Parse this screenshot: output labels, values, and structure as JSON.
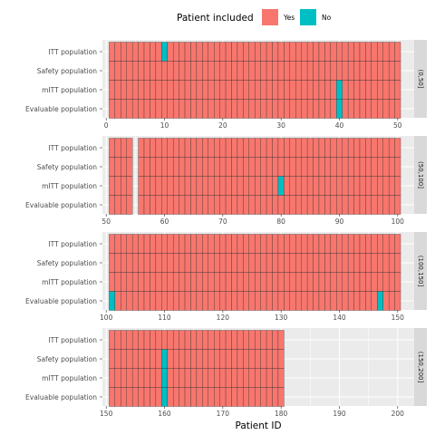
{
  "chart_data": {
    "type": "heatmap",
    "xlabel": "Patient ID",
    "legend": {
      "title": "Patient included",
      "position": "top",
      "entries": [
        {
          "label": "Yes",
          "color": "#F8766D"
        },
        {
          "label": "No",
          "color": "#00BFC4"
        }
      ]
    },
    "populations": [
      "ITT population",
      "Safety population",
      "mITT population",
      "Evaluable population"
    ],
    "patient_ids": {
      "from": 1,
      "to": 180
    },
    "missing_patient_ids": [
      55
    ],
    "panels": [
      {
        "strip": "(0,50]",
        "xlim": [
          0,
          50
        ],
        "xticks": [
          0,
          10,
          20,
          30,
          40,
          50
        ]
      },
      {
        "strip": "(50,100]",
        "xlim": [
          50,
          100
        ],
        "xticks": [
          50,
          60,
          70,
          80,
          90,
          100
        ]
      },
      {
        "strip": "(100,150]",
        "xlim": [
          100,
          150
        ],
        "xticks": [
          100,
          110,
          120,
          130,
          140,
          150
        ]
      },
      {
        "strip": "(150,200]",
        "xlim": [
          150,
          200
        ],
        "xticks": [
          150,
          160,
          170,
          180,
          190,
          200
        ]
      }
    ],
    "excluded": [
      {
        "population": "ITT population",
        "patient_id": 10
      },
      {
        "population": "mITT population",
        "patient_id": 40
      },
      {
        "population": "Evaluable population",
        "patient_id": 40
      },
      {
        "population": "mITT population",
        "patient_id": 80
      },
      {
        "population": "Evaluable population",
        "patient_id": 101
      },
      {
        "population": "Evaluable population",
        "patient_id": 147
      },
      {
        "population": "Safety population",
        "patient_id": 160
      },
      {
        "population": "mITT population",
        "patient_id": 160
      },
      {
        "population": "Evaluable population",
        "patient_id": 160
      }
    ],
    "grid": true
  }
}
